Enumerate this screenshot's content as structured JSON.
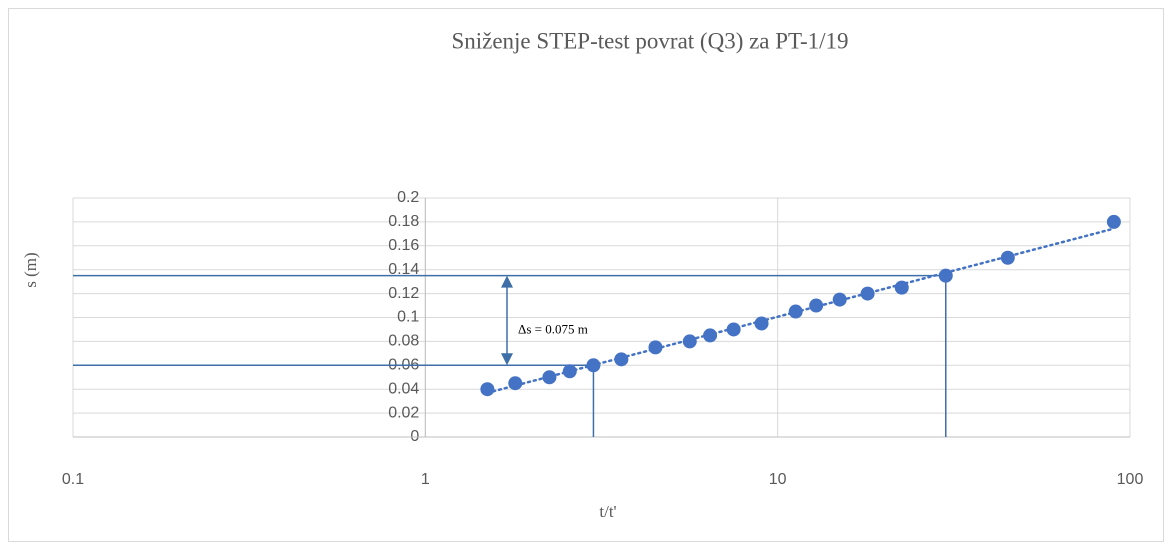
{
  "chart_data": {
    "type": "scatter",
    "title": "Sniženje STEP-test povrat (Q3) za PT-1/19",
    "x_label": "t/t'",
    "y_label": "s (m)",
    "series": [
      {
        "name": "s",
        "color": "#4472c4",
        "x": [
          1.5,
          1.8,
          2.25,
          2.57,
          3,
          3.6,
          4.5,
          5.63,
          6.43,
          7.5,
          9,
          11.25,
          12.86,
          15,
          18,
          22.5,
          30,
          45,
          90
        ],
        "values": [
          0.04,
          0.045,
          0.05,
          0.055,
          0.06,
          0.065,
          0.075,
          0.08,
          0.085,
          0.09,
          0.095,
          0.105,
          0.11,
          0.115,
          0.12,
          0.125,
          0.135,
          0.15,
          0.18
        ]
      }
    ],
    "trendline": "logarithmic",
    "xlim": [
      0.1,
      100
    ],
    "xticks": [
      0.1,
      1,
      10,
      100
    ],
    "xscale": "log",
    "ylim": [
      0,
      0.2
    ],
    "yticks": [
      0,
      0.02,
      0.04,
      0.06,
      0.08,
      0.1,
      0.12,
      0.14,
      0.16,
      0.18,
      0.2
    ],
    "grid": true,
    "guides": [
      {
        "x": 3,
        "y": 0.06
      },
      {
        "x": 30,
        "y": 0.135
      }
    ],
    "guide_color": "#3f6fa8",
    "annotation": "Δs = 0.075 m"
  }
}
